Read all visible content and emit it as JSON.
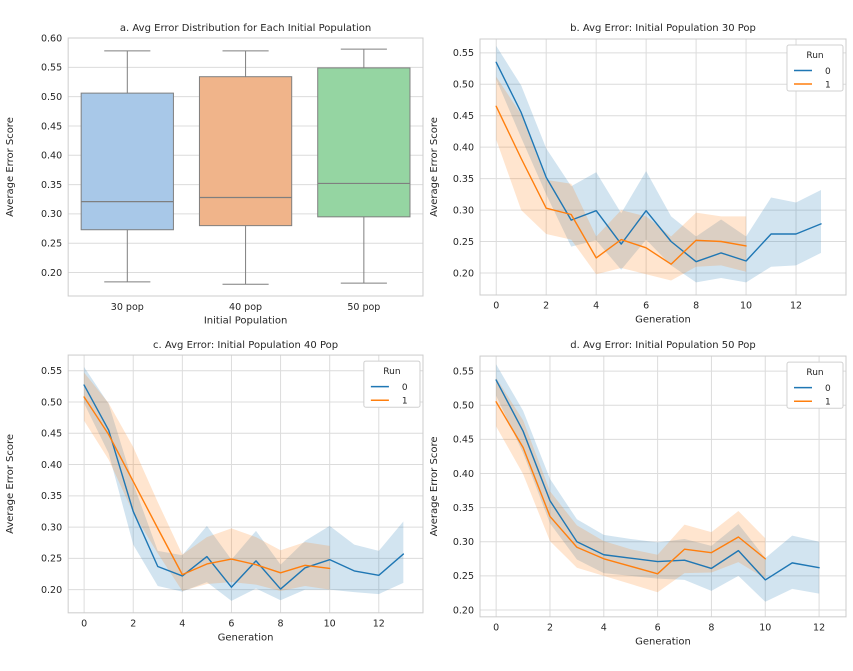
{
  "figure": {
    "background": "#ffffff",
    "ylabel_shared": "Average Error Score",
    "legend_title": "Run"
  },
  "palette": {
    "blue_line": "#1f77b4",
    "orange_line": "#ff7f0e",
    "box_blue": "#a8c8e8",
    "box_orange": "#f0b48a",
    "box_green": "#95d5a2",
    "box_edge": "#7f7f7f",
    "grid": "#dcdcdc",
    "spine": "#cccccc",
    "text": "#262626",
    "legend_border": "#d0d0d0"
  },
  "chart_data": [
    {
      "type": "box",
      "title": "a. Avg Error Distribution for Each Initial Population",
      "xlabel": "Initial Population",
      "ylabel": "Average Error Score",
      "ylim": [
        0.16,
        0.6
      ],
      "yticks": [
        0.2,
        0.25,
        0.3,
        0.35,
        0.4,
        0.45,
        0.5,
        0.55,
        0.6
      ],
      "grid": "horizontal",
      "boxes": [
        {
          "label": "30 pop",
          "color": "#a8c8e8",
          "whisker_low": 0.184,
          "q1": 0.273,
          "median": 0.321,
          "q3": 0.506,
          "whisker_high": 0.578
        },
        {
          "label": "40 pop",
          "color": "#f0b48a",
          "whisker_low": 0.18,
          "q1": 0.28,
          "median": 0.328,
          "q3": 0.534,
          "whisker_high": 0.578
        },
        {
          "label": "50 pop",
          "color": "#95d5a2",
          "whisker_low": 0.182,
          "q1": 0.295,
          "median": 0.352,
          "q3": 0.549,
          "whisker_high": 0.581
        }
      ]
    },
    {
      "type": "line",
      "title": "b. Avg Error: Initial Population 30 Pop",
      "xlabel": "Generation",
      "ylabel": "Average Error Score",
      "legend_title": "Run",
      "ylim": [
        0.165,
        0.572
      ],
      "xlim": [
        -0.65,
        14.0
      ],
      "yticks": [
        0.2,
        0.25,
        0.3,
        0.35,
        0.4,
        0.45,
        0.5,
        0.55
      ],
      "xticks": [
        0,
        2,
        4,
        6,
        8,
        10,
        12
      ],
      "series": [
        {
          "name": "0",
          "color": "#1f77b4",
          "x": [
            0,
            1,
            2,
            3,
            4,
            5,
            6,
            7,
            8,
            9,
            10,
            11,
            12,
            13
          ],
          "mean": [
            0.535,
            0.455,
            0.352,
            0.284,
            0.299,
            0.246,
            0.299,
            0.25,
            0.218,
            0.232,
            0.219,
            0.262,
            0.262,
            0.278
          ],
          "lower": [
            0.508,
            0.415,
            0.325,
            0.242,
            0.252,
            0.205,
            0.253,
            0.212,
            0.185,
            0.192,
            0.185,
            0.21,
            0.212,
            0.232
          ],
          "upper": [
            0.561,
            0.498,
            0.398,
            0.338,
            0.36,
            0.295,
            0.362,
            0.29,
            0.258,
            0.285,
            0.258,
            0.32,
            0.312,
            0.332
          ]
        },
        {
          "name": "1",
          "color": "#ff7f0e",
          "x": [
            0,
            1,
            2,
            3,
            4,
            5,
            6,
            7,
            8,
            9,
            10
          ],
          "mean": [
            0.465,
            0.382,
            0.303,
            0.293,
            0.224,
            0.253,
            0.24,
            0.214,
            0.252,
            0.25,
            0.243
          ],
          "lower": [
            0.412,
            0.3,
            0.262,
            0.253,
            0.198,
            0.208,
            0.198,
            0.188,
            0.21,
            0.212,
            0.202
          ],
          "upper": [
            0.512,
            0.452,
            0.348,
            0.342,
            0.258,
            0.3,
            0.29,
            0.258,
            0.296,
            0.29,
            0.29
          ]
        }
      ]
    },
    {
      "type": "line",
      "title": "c. Avg Error: Initial Population 40 Pop",
      "xlabel": "Generation",
      "ylabel": "Average Error Score",
      "legend_title": "Run",
      "ylim": [
        0.163,
        0.575
      ],
      "xlim": [
        -0.65,
        13.8
      ],
      "yticks": [
        0.2,
        0.25,
        0.3,
        0.35,
        0.4,
        0.45,
        0.5,
        0.55
      ],
      "xticks": [
        0,
        2,
        4,
        6,
        8,
        10,
        12
      ],
      "series": [
        {
          "name": "0",
          "color": "#1f77b4",
          "x": [
            0,
            1,
            2,
            3,
            4,
            5,
            6,
            7,
            8,
            9,
            10,
            11,
            12,
            13
          ],
          "mean": [
            0.527,
            0.455,
            0.325,
            0.237,
            0.222,
            0.253,
            0.204,
            0.246,
            0.201,
            0.235,
            0.248,
            0.23,
            0.223,
            0.257
          ],
          "lower": [
            0.498,
            0.418,
            0.272,
            0.206,
            0.197,
            0.212,
            0.182,
            0.202,
            0.183,
            0.2,
            0.2,
            0.196,
            0.193,
            0.211
          ],
          "upper": [
            0.556,
            0.497,
            0.37,
            0.262,
            0.255,
            0.302,
            0.248,
            0.294,
            0.24,
            0.278,
            0.302,
            0.272,
            0.262,
            0.309
          ]
        },
        {
          "name": "1",
          "color": "#ff7f0e",
          "x": [
            0,
            1,
            2,
            3,
            4,
            5,
            6,
            7,
            8,
            9,
            10
          ],
          "mean": [
            0.508,
            0.448,
            0.373,
            0.298,
            0.224,
            0.241,
            0.249,
            0.24,
            0.227,
            0.239,
            0.234
          ],
          "lower": [
            0.47,
            0.408,
            0.323,
            0.258,
            0.198,
            0.209,
            0.212,
            0.208,
            0.198,
            0.206,
            0.2
          ],
          "upper": [
            0.547,
            0.498,
            0.428,
            0.34,
            0.256,
            0.284,
            0.298,
            0.284,
            0.263,
            0.276,
            0.27
          ]
        }
      ]
    },
    {
      "type": "line",
      "title": "d. Avg Error: Initial Population 50 Pop",
      "xlabel": "Generation",
      "ylabel": "Average Error Score",
      "legend_title": "Run",
      "ylim": [
        0.19,
        0.572
      ],
      "xlim": [
        -0.6,
        13.0
      ],
      "yticks": [
        0.2,
        0.25,
        0.3,
        0.35,
        0.4,
        0.45,
        0.5,
        0.55
      ],
      "xticks": [
        0,
        2,
        4,
        6,
        8,
        10,
        12
      ],
      "series": [
        {
          "name": "0",
          "color": "#1f77b4",
          "x": [
            0,
            1,
            2,
            3,
            4,
            5,
            6,
            7,
            8,
            9,
            10,
            11,
            12
          ],
          "mean": [
            0.537,
            0.462,
            0.36,
            0.3,
            0.281,
            0.276,
            0.271,
            0.273,
            0.261,
            0.287,
            0.244,
            0.269,
            0.262
          ],
          "lower": [
            0.514,
            0.43,
            0.327,
            0.274,
            0.254,
            0.25,
            0.246,
            0.244,
            0.228,
            0.25,
            0.212,
            0.231,
            0.224
          ],
          "upper": [
            0.56,
            0.492,
            0.392,
            0.333,
            0.31,
            0.304,
            0.299,
            0.304,
            0.294,
            0.326,
            0.276,
            0.309,
            0.3
          ]
        },
        {
          "name": "1",
          "color": "#ff7f0e",
          "x": [
            0,
            1,
            2,
            3,
            4,
            5,
            6,
            7,
            8,
            9,
            10
          ],
          "mean": [
            0.505,
            0.438,
            0.337,
            0.292,
            0.275,
            0.264,
            0.253,
            0.289,
            0.284,
            0.307,
            0.275
          ],
          "lower": [
            0.469,
            0.399,
            0.301,
            0.262,
            0.25,
            0.238,
            0.226,
            0.254,
            0.255,
            0.27,
            0.246
          ],
          "upper": [
            0.54,
            0.478,
            0.374,
            0.324,
            0.301,
            0.289,
            0.281,
            0.325,
            0.314,
            0.345,
            0.305
          ]
        }
      ]
    }
  ]
}
